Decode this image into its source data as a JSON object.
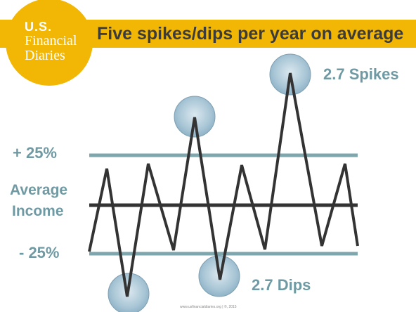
{
  "header": {
    "title": "Five spikes/dips per year on average",
    "logo_line1": "U.S.",
    "logo_line2": "Financial",
    "logo_line3": "Diaries"
  },
  "labels": {
    "plus": "+ 25%",
    "average_line1": "Average",
    "average_line2": "Income",
    "minus": "- 25%",
    "spikes": "2.7 Spikes",
    "dips": "2.7 Dips"
  },
  "footer": "www.usfinancialdiaries.org  |  ©, 2015",
  "colors": {
    "banner": "#f2b705",
    "threshold_line": "#7ea6ad",
    "income_line": "#333333",
    "highlight_circle": "#a9c6d6",
    "label_text": "#6f9aa3"
  }
}
